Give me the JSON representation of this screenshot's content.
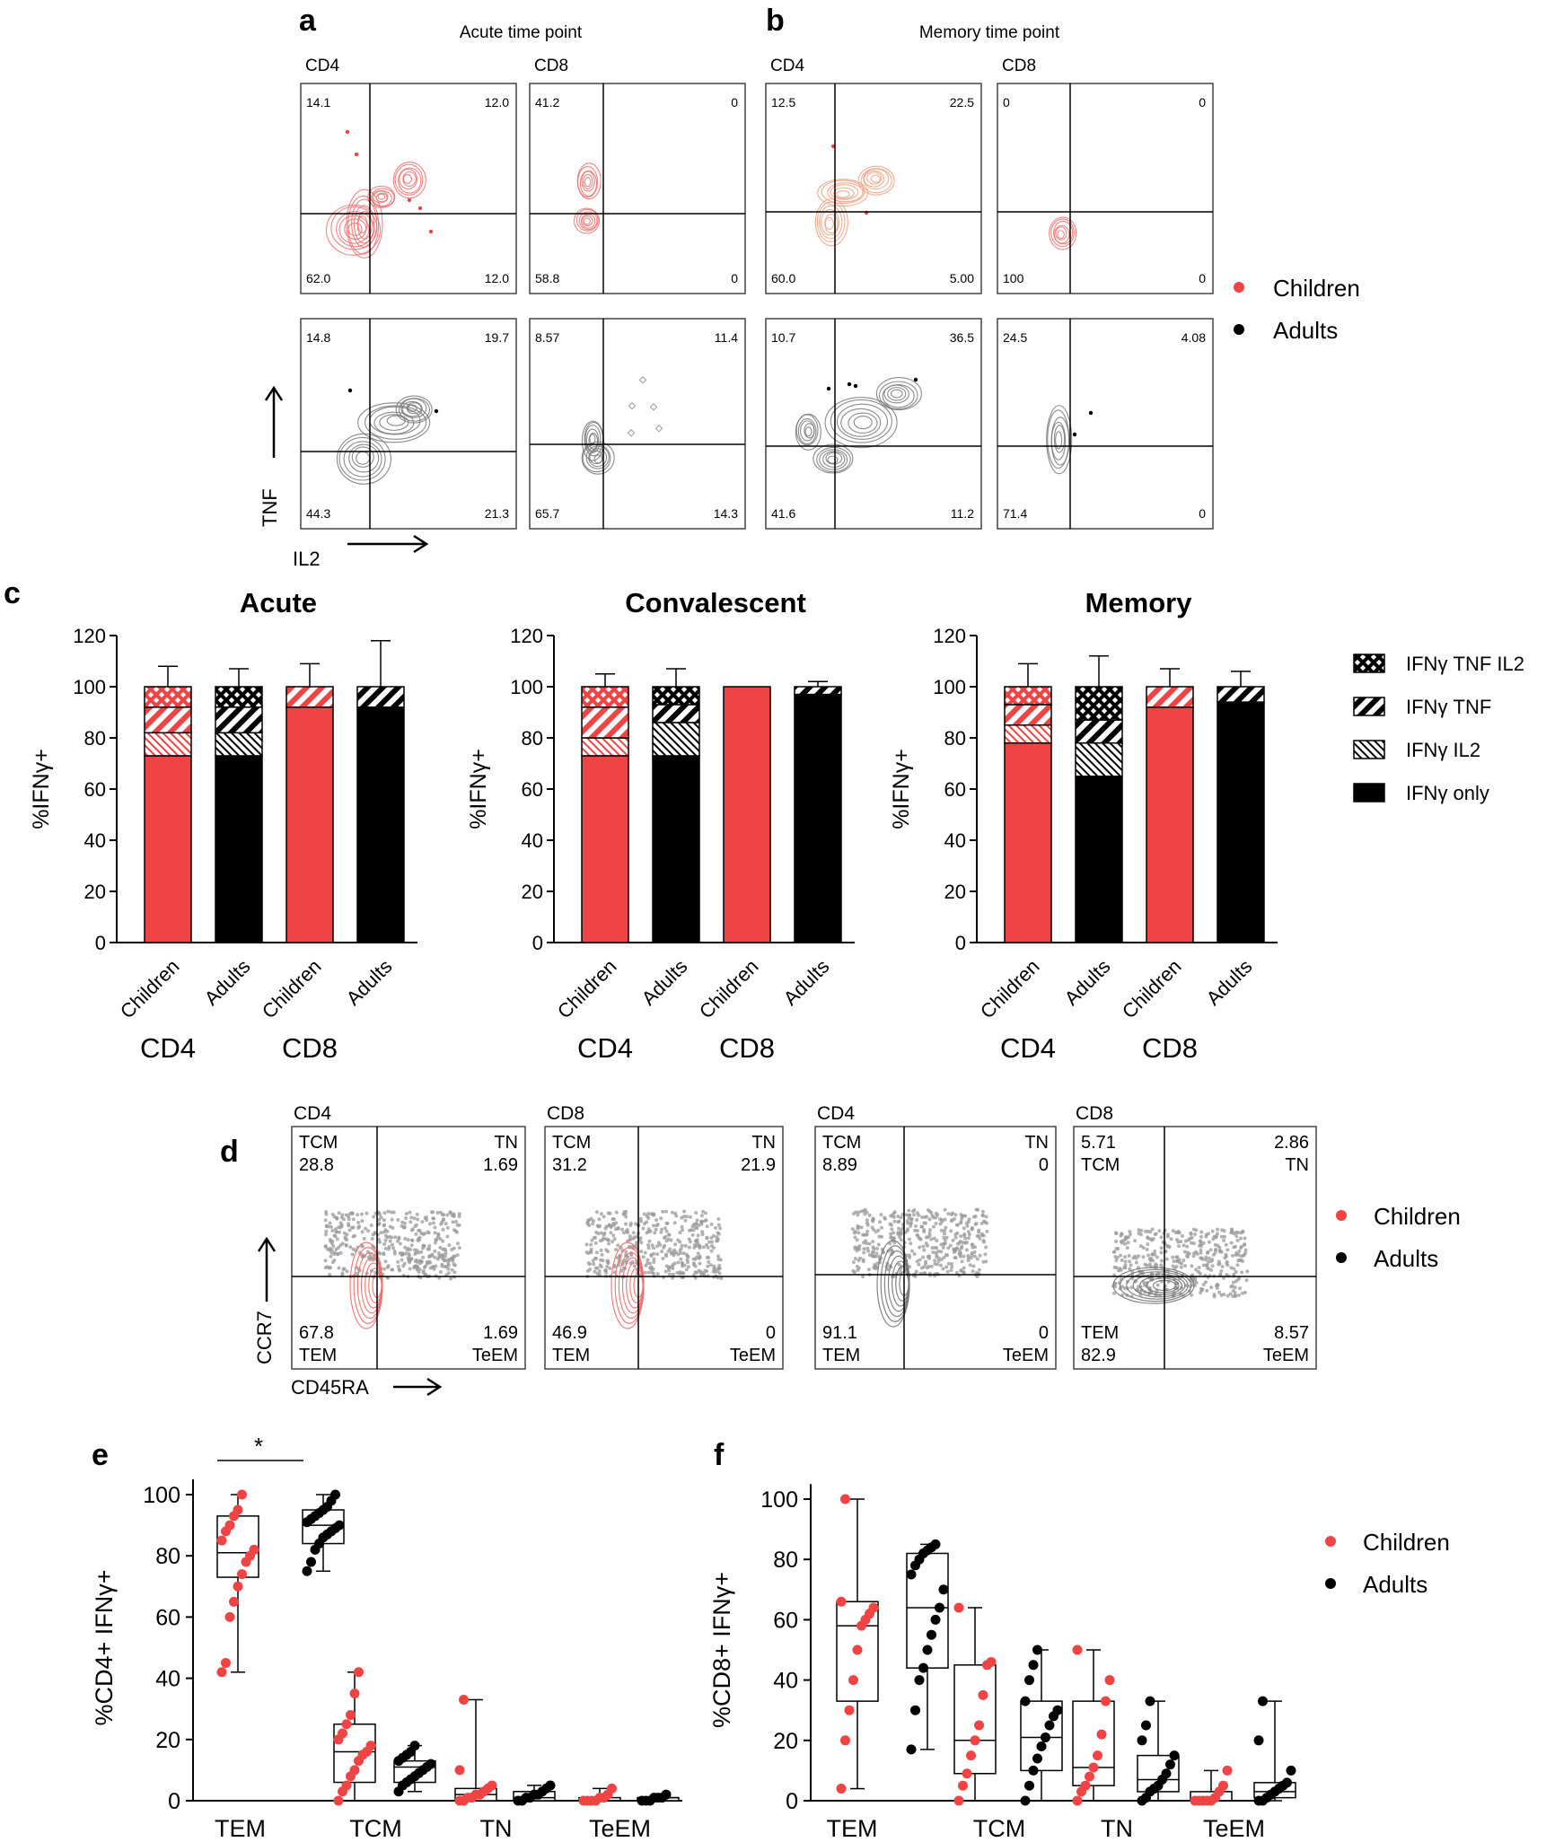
{
  "colors": {
    "children": "#f04444",
    "adults": "#000000",
    "contour_child": "#f07070",
    "contour_child_mem": "#f0a080",
    "contour_adult": "#777777",
    "gray": "#999999"
  },
  "panel_labels": {
    "a": "a",
    "b": "b",
    "c": "c",
    "d": "d",
    "e": "e",
    "f": "f"
  },
  "flow_ab": {
    "acute_title": "Acute time point",
    "memory_title": "Memory time point",
    "x_axis": "IL2",
    "y_axis": "TNF",
    "legend": {
      "children": "Children",
      "adults": "Adults"
    },
    "plots": [
      {
        "label": "CD4",
        "q": [
          "14.1",
          "12.0",
          "62.0",
          "12.0"
        ]
      },
      {
        "label": "CD8",
        "q": [
          "41.2",
          "0",
          "58.8",
          "0"
        ]
      },
      {
        "label": "CD4",
        "q": [
          "12.5",
          "22.5",
          "60.0",
          "5.00"
        ]
      },
      {
        "label": "CD8",
        "q": [
          "0",
          "0",
          "100",
          "0"
        ]
      },
      {
        "label": "",
        "q": [
          "14.8",
          "19.7",
          "44.3",
          "21.3"
        ]
      },
      {
        "label": "",
        "q": [
          "8.57",
          "11.4",
          "65.7",
          "14.3"
        ]
      },
      {
        "label": "",
        "q": [
          "10.7",
          "36.5",
          "41.6",
          "11.2"
        ]
      },
      {
        "label": "",
        "q": [
          "24.5",
          "4.08",
          "71.4",
          "0"
        ]
      }
    ]
  },
  "chart_data": [
    {
      "type": "bar",
      "stacked": true,
      "title": "Acute",
      "ylabel": "%IFNγ+",
      "ylim": [
        0,
        120
      ],
      "yticks": [
        "0",
        "20",
        "40",
        "60",
        "80",
        "100",
        "120"
      ],
      "categories": [
        "Children",
        "Adults",
        "Children",
        "Adults"
      ],
      "groups": [
        "CD4",
        "CD8"
      ],
      "series": [
        {
          "name": "IFNγ only",
          "values": [
            73,
            73,
            92,
            92
          ]
        },
        {
          "name": "IFNγ IL2",
          "values": [
            9,
            9,
            0,
            0
          ]
        },
        {
          "name": "IFNγ TNF",
          "values": [
            10,
            10,
            8,
            8
          ]
        },
        {
          "name": "IFNγ TNF IL2",
          "values": [
            8,
            8,
            0,
            0
          ]
        }
      ],
      "error_tops": [
        108,
        107,
        109,
        118
      ]
    },
    {
      "type": "bar",
      "stacked": true,
      "title": "Convalescent",
      "ylabel": "%IFNγ+",
      "ylim": [
        0,
        120
      ],
      "yticks": [
        "0",
        "20",
        "40",
        "60",
        "80",
        "100",
        "120"
      ],
      "categories": [
        "Children",
        "Adults",
        "Children",
        "Adults"
      ],
      "groups": [
        "CD4",
        "CD8"
      ],
      "series": [
        {
          "name": "IFNγ only",
          "values": [
            73,
            73,
            100,
            97
          ]
        },
        {
          "name": "IFNγ IL2",
          "values": [
            7,
            13,
            0,
            0
          ]
        },
        {
          "name": "IFNγ TNF",
          "values": [
            12,
            7,
            0,
            3
          ]
        },
        {
          "name": "IFNγ TNF IL2",
          "values": [
            8,
            7,
            0,
            0
          ]
        }
      ],
      "error_tops": [
        105,
        107,
        100,
        102
      ]
    },
    {
      "type": "bar",
      "stacked": true,
      "title": "Memory",
      "ylabel": "%IFNγ+",
      "ylim": [
        0,
        120
      ],
      "yticks": [
        "0",
        "20",
        "40",
        "60",
        "80",
        "100",
        "120"
      ],
      "categories": [
        "Children",
        "Adults",
        "Children",
        "Adults"
      ],
      "groups": [
        "CD4",
        "CD8"
      ],
      "series": [
        {
          "name": "IFNγ only",
          "values": [
            78,
            65,
            92,
            94
          ]
        },
        {
          "name": "IFNγ IL2",
          "values": [
            7,
            13,
            0,
            0
          ]
        },
        {
          "name": "IFNγ TNF",
          "values": [
            8,
            9,
            8,
            6
          ]
        },
        {
          "name": "IFNγ TNF IL2",
          "values": [
            7,
            13,
            0,
            0
          ]
        }
      ],
      "error_tops": [
        109,
        112,
        107,
        106
      ]
    },
    {
      "type": "box",
      "panel": "e",
      "ylabel": "%CD4+ IFNγ+",
      "ylim": [
        0,
        105
      ],
      "yticks": [
        "0",
        "20",
        "40",
        "60",
        "80",
        "100"
      ],
      "categories": [
        "TEM",
        "TCM",
        "TN",
        "TeEM"
      ],
      "significance": "*",
      "boxes": [
        {
          "group": "Children",
          "cat": "TEM",
          "min": 42,
          "q1": 73,
          "median": 81,
          "q3": 93,
          "max": 100,
          "points": [
            42,
            45,
            60,
            65,
            70,
            74,
            78,
            80,
            82,
            85,
            88,
            90,
            93,
            95,
            100
          ]
        },
        {
          "group": "Adults",
          "cat": "TEM",
          "min": 75,
          "q1": 84,
          "median": 90,
          "q3": 95,
          "max": 100,
          "points": [
            75,
            78,
            82,
            84,
            86,
            87,
            88,
            89,
            90,
            91,
            92,
            93,
            94,
            95,
            96,
            98,
            100
          ]
        },
        {
          "group": "Children",
          "cat": "TCM",
          "min": 0,
          "q1": 6,
          "median": 16,
          "q3": 25,
          "max": 42,
          "points": [
            0,
            3,
            5,
            8,
            10,
            13,
            15,
            16,
            18,
            20,
            22,
            25,
            28,
            35,
            42
          ]
        },
        {
          "group": "Adults",
          "cat": "TCM",
          "min": 3,
          "q1": 6,
          "median": 11,
          "q3": 13,
          "max": 18,
          "points": [
            3,
            5,
            6,
            7,
            8,
            9,
            10,
            11,
            12,
            13,
            14,
            15,
            16,
            18
          ]
        },
        {
          "group": "Children",
          "cat": "TN",
          "min": 0,
          "q1": 0,
          "median": 2,
          "q3": 4,
          "max": 33,
          "points": [
            0,
            0,
            1,
            1,
            2,
            2,
            3,
            4,
            5,
            10,
            33
          ]
        },
        {
          "group": "Adults",
          "cat": "TN",
          "min": 0,
          "q1": 0,
          "median": 1,
          "q3": 3,
          "max": 5,
          "points": [
            0,
            0,
            1,
            1,
            2,
            2,
            3,
            4,
            5
          ]
        },
        {
          "group": "Children",
          "cat": "TeEM",
          "min": 0,
          "q1": 0,
          "median": 0,
          "q3": 1,
          "max": 4,
          "points": [
            0,
            0,
            0,
            0,
            1,
            1,
            2,
            4
          ]
        },
        {
          "group": "Adults",
          "cat": "TeEM",
          "min": 0,
          "q1": 0,
          "median": 1,
          "q3": 1,
          "max": 2,
          "points": [
            0,
            0,
            0,
            1,
            1,
            1,
            2
          ]
        }
      ]
    },
    {
      "type": "box",
      "panel": "f",
      "ylabel": "%CD8+ IFNγ+",
      "ylim": [
        0,
        105
      ],
      "yticks": [
        "0",
        "20",
        "40",
        "60",
        "80",
        "100"
      ],
      "categories": [
        "TEM",
        "TCM",
        "TN",
        "TeEM"
      ],
      "boxes": [
        {
          "group": "Children",
          "cat": "TEM",
          "min": 4,
          "q1": 33,
          "median": 58,
          "q3": 66,
          "max": 100,
          "points": [
            4,
            20,
            30,
            40,
            50,
            58,
            60,
            62,
            64,
            66,
            100
          ]
        },
        {
          "group": "Adults",
          "cat": "TEM",
          "min": 17,
          "q1": 44,
          "median": 64,
          "q3": 82,
          "max": 85,
          "points": [
            17,
            30,
            40,
            44,
            50,
            55,
            60,
            64,
            70,
            75,
            78,
            80,
            82,
            83,
            84,
            85
          ]
        },
        {
          "group": "Children",
          "cat": "TCM",
          "min": 0,
          "q1": 9,
          "median": 20,
          "q3": 45,
          "max": 64,
          "points": [
            0,
            5,
            9,
            15,
            20,
            25,
            35,
            45,
            46,
            64
          ]
        },
        {
          "group": "Adults",
          "cat": "TCM",
          "min": 0,
          "q1": 10,
          "median": 21,
          "q3": 33,
          "max": 50,
          "points": [
            0,
            5,
            10,
            14,
            18,
            21,
            25,
            28,
            30,
            33,
            40,
            45,
            50
          ]
        },
        {
          "group": "Children",
          "cat": "TN",
          "min": 0,
          "q1": 5,
          "median": 11,
          "q3": 33,
          "max": 50,
          "points": [
            0,
            3,
            5,
            8,
            11,
            15,
            22,
            33,
            40,
            50
          ]
        },
        {
          "group": "Adults",
          "cat": "TN",
          "min": 0,
          "q1": 3,
          "median": 7,
          "q3": 15,
          "max": 33,
          "points": [
            0,
            1,
            3,
            4,
            5,
            7,
            9,
            12,
            15,
            20,
            25,
            33
          ]
        },
        {
          "group": "Children",
          "cat": "TeEM",
          "min": 0,
          "q1": 0,
          "median": 0,
          "q3": 3,
          "max": 10,
          "points": [
            0,
            0,
            0,
            0,
            0,
            1,
            3,
            5,
            10
          ]
        },
        {
          "group": "Adults",
          "cat": "TeEM",
          "min": 0,
          "q1": 1,
          "median": 3,
          "q3": 6,
          "max": 33,
          "points": [
            0,
            0,
            1,
            2,
            3,
            4,
            5,
            6,
            10,
            20,
            33
          ]
        }
      ]
    }
  ],
  "legend_c": {
    "items": [
      "IFNγ TNF IL2",
      "IFNγ TNF",
      "IFNγ IL2",
      "IFNγ only"
    ]
  },
  "flow_d": {
    "x_axis": "CD45RA",
    "y_axis": "CCR7",
    "legend": {
      "children": "Children",
      "adults": "Adults"
    },
    "plots": [
      {
        "label": "CD4",
        "tl": [
          "TCM",
          "28.8"
        ],
        "tr": [
          "TN",
          "1.69"
        ],
        "bl": [
          "67.8",
          "TEM"
        ],
        "br": [
          "1.69",
          "TeEM"
        ]
      },
      {
        "label": "CD8",
        "tl": [
          "TCM",
          "31.2"
        ],
        "tr": [
          "TN",
          "21.9"
        ],
        "bl": [
          "46.9",
          "TEM"
        ],
        "br": [
          "0",
          "TeEM"
        ]
      },
      {
        "label": "CD4",
        "tl": [
          "TCM",
          "8.89"
        ],
        "tr": [
          "TN",
          "0"
        ],
        "bl": [
          "91.1",
          "TEM"
        ],
        "br": [
          "0",
          "TeEM"
        ]
      },
      {
        "label": "CD8",
        "tl": [
          "5.71",
          "TCM"
        ],
        "tr": [
          "2.86",
          "TN"
        ],
        "bl": [
          "TEM",
          "82.9"
        ],
        "br": [
          "8.57",
          "TeEM"
        ]
      }
    ]
  },
  "box_legend": {
    "children": "Children",
    "adults": "Adults"
  },
  "group_labels": {
    "cd4": "CD4",
    "cd8": "CD8"
  }
}
